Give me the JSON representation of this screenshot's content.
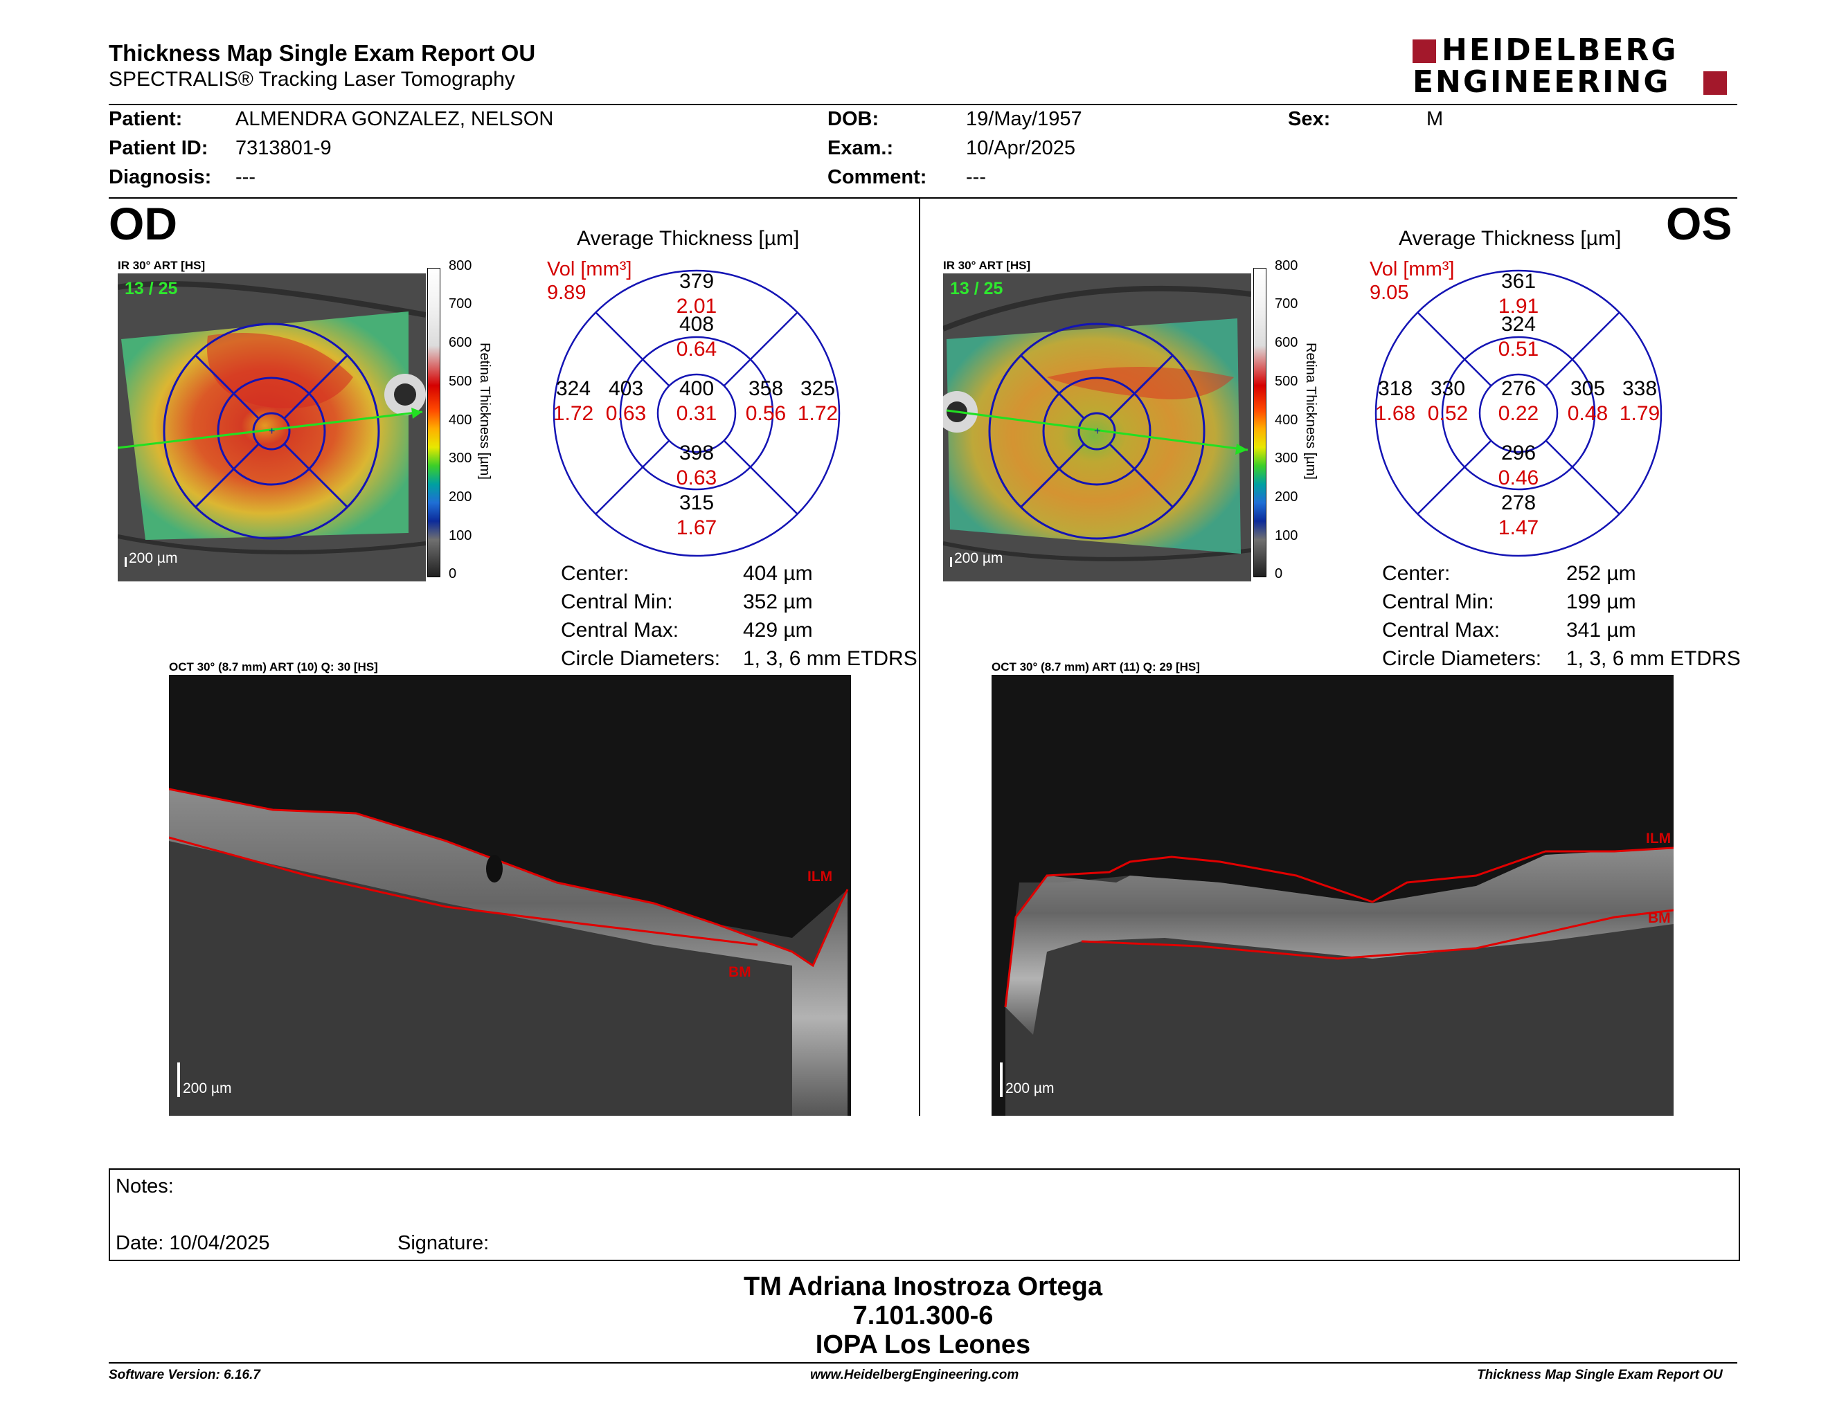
{
  "report": {
    "title": "Thickness Map Single Exam Report OU",
    "subtitle": "SPECTRALIS® Tracking Laser Tomography",
    "logo_line1": "HEIDELBERG",
    "logo_line2": "ENGINEERING"
  },
  "patient": {
    "patient_label": "Patient:",
    "patient_value": "ALMENDRA GONZALEZ, NELSON",
    "id_label": "Patient ID:",
    "id_value": "7313801-9",
    "diagnosis_label": "Diagnosis:",
    "diagnosis_value": "---",
    "dob_label": "DOB:",
    "dob_value": "19/May/1957",
    "exam_label": "Exam.:",
    "exam_value": "10/Apr/2025",
    "comment_label": "Comment:",
    "comment_value": "---",
    "sex_label": "Sex:",
    "sex_value": "M"
  },
  "colorbar": {
    "ticks": [
      "800",
      "700",
      "600",
      "500",
      "400",
      "300",
      "200",
      "100",
      "0"
    ],
    "title": "Retina  Thickness [µm]"
  },
  "od": {
    "eye": "OD",
    "ir_header": "IR 30° ART [HS]",
    "frames": "13 / 25",
    "ir_scale": "200 µm",
    "avg_title": "Average Thickness [µm]",
    "vol_label": "Vol [mm³]",
    "vol_total": "9.89",
    "sectors": {
      "outer_sup": {
        "t": "379",
        "v": "2.01"
      },
      "inner_sup": {
        "t": "408",
        "v": "0.64"
      },
      "outer_temp": {
        "t": "324",
        "v": "1.72"
      },
      "inner_temp": {
        "t": "403",
        "v": "0.63"
      },
      "center": {
        "t": "400",
        "v": "0.31"
      },
      "inner_nasal": {
        "t": "358",
        "v": "0.56"
      },
      "outer_nasal": {
        "t": "325",
        "v": "1.72"
      },
      "inner_inf": {
        "t": "398",
        "v": "0.63"
      },
      "outer_inf": {
        "t": "315",
        "v": "1.67"
      }
    },
    "stats": {
      "center_label": "Center:",
      "center_value": "404 µm",
      "min_label": "Central Min:",
      "min_value": "352 µm",
      "max_label": "Central Max:",
      "max_value": "429 µm",
      "circle_label": "Circle Diameters:",
      "circle_value": "1, 3, 6 mm ETDRS"
    },
    "oct_header": "OCT 30° (8.7 mm) ART (10) Q: 30 [HS]",
    "ilm": "ILM",
    "bm": "BM",
    "oct_scale": "200 µm"
  },
  "os": {
    "eye": "OS",
    "ir_header": "IR 30° ART [HS]",
    "frames": "13 / 25",
    "ir_scale": "200 µm",
    "avg_title": "Average Thickness [µm]",
    "vol_label": "Vol [mm³]",
    "vol_total": "9.05",
    "sectors": {
      "outer_sup": {
        "t": "361",
        "v": "1.91"
      },
      "inner_sup": {
        "t": "324",
        "v": "0.51"
      },
      "outer_temp": {
        "t": "318",
        "v": "1.68"
      },
      "inner_temp": {
        "t": "330",
        "v": "0.52"
      },
      "center": {
        "t": "276",
        "v": "0.22"
      },
      "inner_nasal": {
        "t": "305",
        "v": "0.48"
      },
      "outer_nasal": {
        "t": "338",
        "v": "1.79"
      },
      "inner_inf": {
        "t": "296",
        "v": "0.46"
      },
      "outer_inf": {
        "t": "278",
        "v": "1.47"
      }
    },
    "stats": {
      "center_label": "Center:",
      "center_value": "252 µm",
      "min_label": "Central Min:",
      "min_value": "199 µm",
      "max_label": "Central Max:",
      "max_value": "341 µm",
      "circle_label": "Circle Diameters:",
      "circle_value": "1, 3, 6 mm ETDRS"
    },
    "oct_header": "OCT 30° (8.7 mm) ART (11) Q: 29 [HS]",
    "ilm": "ILM",
    "bm": "BM",
    "oct_scale": "200 µm"
  },
  "notes": {
    "notes_label": "Notes:",
    "date_label": "Date: 10/04/2025",
    "signature_label": "Signature:"
  },
  "technician": {
    "line1": "TM Adriana Inostroza Ortega",
    "line2": "7.101.300-6",
    "line3": "IOPA Los Leones"
  },
  "footer": {
    "software": "Software Version: 6.16.7",
    "website": "www.HeidelbergEngineering.com",
    "report_name": "Thickness Map Single Exam Report OU"
  }
}
